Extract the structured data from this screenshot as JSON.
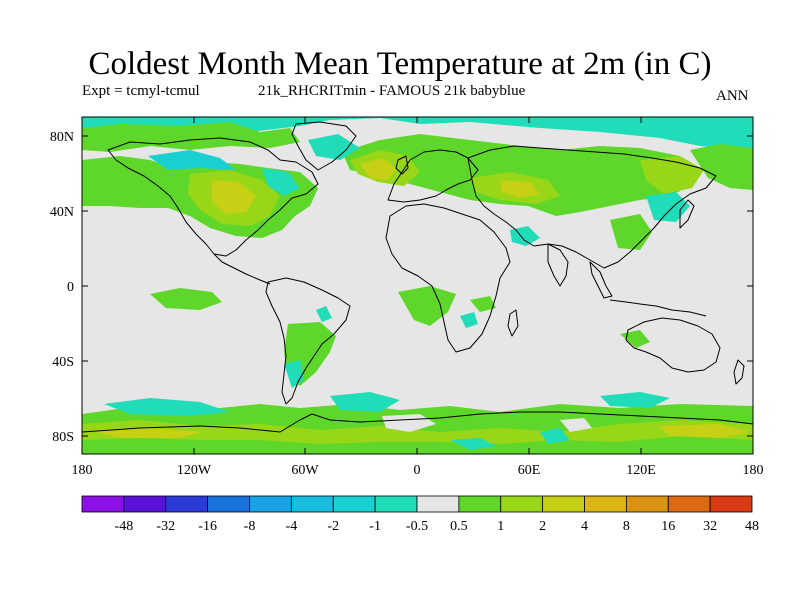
{
  "title": "Coldest Month Mean Temperature at 2m (in C)",
  "experiment": "Expt = tcmyl-tcmul",
  "run_label": "21k_RHCRITmin - FAMOUS 21k babyblue",
  "season": "ANN",
  "lat_ticks": [
    "80N",
    "40N",
    "0",
    "40S",
    "80S"
  ],
  "lon_ticks": [
    "180",
    "120W",
    "60W",
    "0",
    "60E",
    "120E",
    "180"
  ],
  "colorbar": {
    "labels": [
      "-48",
      "-32",
      "-16",
      "-8",
      "-4",
      "-2",
      "-1",
      "-0.5",
      "0.5",
      "1",
      "2",
      "4",
      "8",
      "16",
      "32",
      "48"
    ],
    "colors": [
      "#8a10e6",
      "#5a12d8",
      "#2a3ad6",
      "#1a72dc",
      "#1aa2e6",
      "#18bde0",
      "#19cfd0",
      "#20dcb8",
      "#e6e6e6",
      "#5fd62a",
      "#98d618",
      "#c6d014",
      "#dcb614",
      "#dc9214",
      "#dc6a14",
      "#d83a14"
    ]
  },
  "map": {
    "background_color": "#e6e6e6",
    "coast_color": "#000000"
  }
}
